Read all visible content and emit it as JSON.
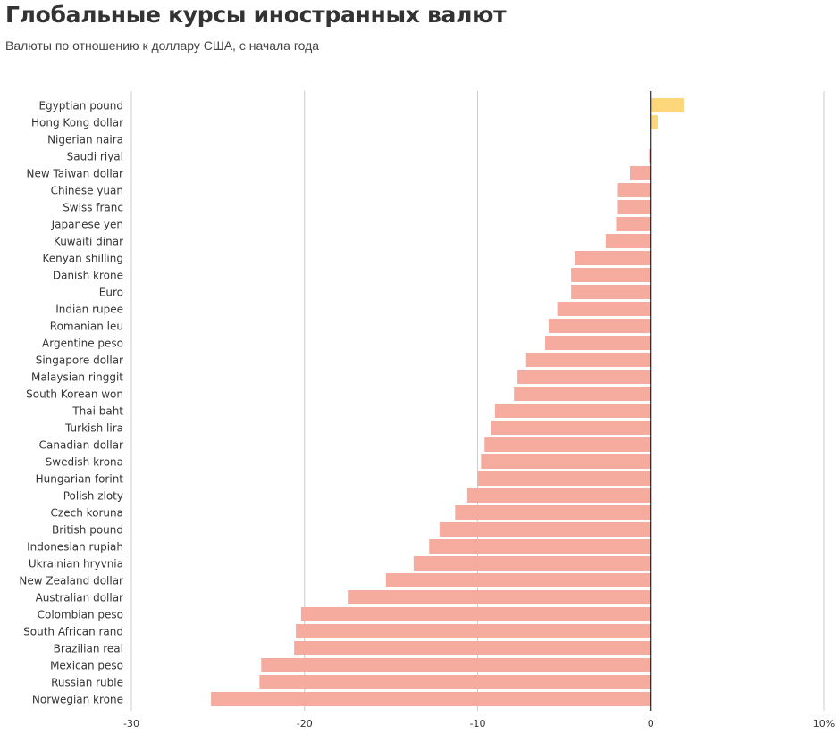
{
  "header": {
    "title": "Глобальные курсы иностранных валют",
    "subtitle": "Валюты по отношению к доллару США, с начала года"
  },
  "chart_data": {
    "type": "bar",
    "orientation": "horizontal",
    "title": "Глобальные курсы иностранных валют",
    "subtitle": "Валюты по отношению к доллару США, с начала года",
    "xlabel": "",
    "ylabel": "",
    "xlim": [
      -30,
      10
    ],
    "ticks": [
      -30,
      -20,
      -10,
      0,
      10
    ],
    "tick_labels": [
      "-30",
      "-20",
      "-10",
      "0",
      "10%"
    ],
    "grid": true,
    "colors": {
      "positive": "#FDD77A",
      "negative": "#F5AB9D",
      "zero_line": "#000000",
      "grid": "#CCCCCC"
    },
    "categories": [
      "Egyptian pound",
      "Hong Kong dollar",
      "Nigerian naira",
      "Saudi riyal",
      "New Taiwan dollar",
      "Chinese yuan",
      "Swiss franc",
      "Japanese yen",
      "Kuwaiti dinar",
      "Kenyan shilling",
      "Danish krone",
      "Euro",
      "Indian rupee",
      "Romanian leu",
      "Argentine peso",
      "Singapore dollar",
      "Malaysian ringgit",
      "South Korean won",
      "Thai baht",
      "Turkish lira",
      "Canadian dollar",
      "Swedish krona",
      "Hungarian forint",
      "Polish zloty",
      "Czech koruna",
      "British pound",
      "Indonesian rupiah",
      "Ukrainian hryvnia",
      "New Zealand dollar",
      "Australian dollar",
      "Colombian peso",
      "South African rand",
      "Brazilian real",
      "Mexican peso",
      "Russian ruble",
      "Norwegian krone"
    ],
    "values": [
      1.9,
      0.4,
      0.0,
      -0.1,
      -1.2,
      -1.9,
      -1.9,
      -2.0,
      -2.6,
      -4.4,
      -4.6,
      -4.6,
      -5.4,
      -5.9,
      -6.1,
      -7.2,
      -7.7,
      -7.9,
      -9.0,
      -9.2,
      -9.6,
      -9.8,
      -10.0,
      -10.6,
      -11.3,
      -12.2,
      -12.8,
      -13.7,
      -15.3,
      -17.5,
      -20.2,
      -20.5,
      -20.6,
      -22.5,
      -22.6,
      -25.4
    ]
  }
}
